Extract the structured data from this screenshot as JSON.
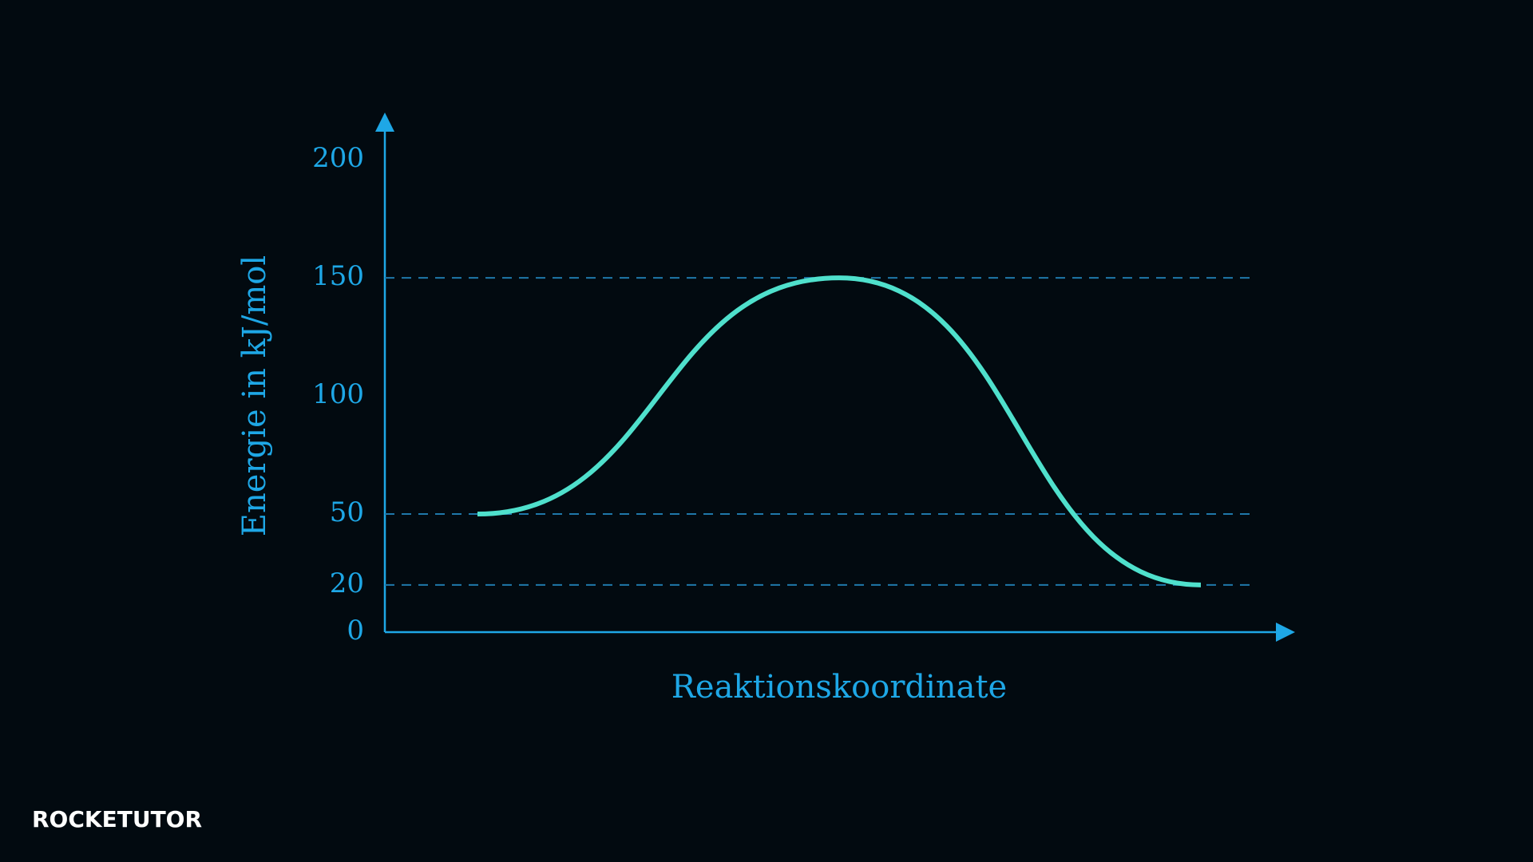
{
  "chart_data": {
    "type": "line",
    "y_label": "Energie in kJ/mol",
    "x_label": "Reaktionskoordinate",
    "categories": [
      null,
      null,
      null
    ],
    "values": [
      50,
      150,
      20
    ],
    "color": "#4fe0cc",
    "axis_color": "#1ea7e6",
    "reference_color": "#1f78aa",
    "ylim": [
      0,
      220
    ],
    "yticks": [
      0,
      20,
      50,
      100,
      150,
      200
    ]
  },
  "logo": "ROCKETUTOR"
}
